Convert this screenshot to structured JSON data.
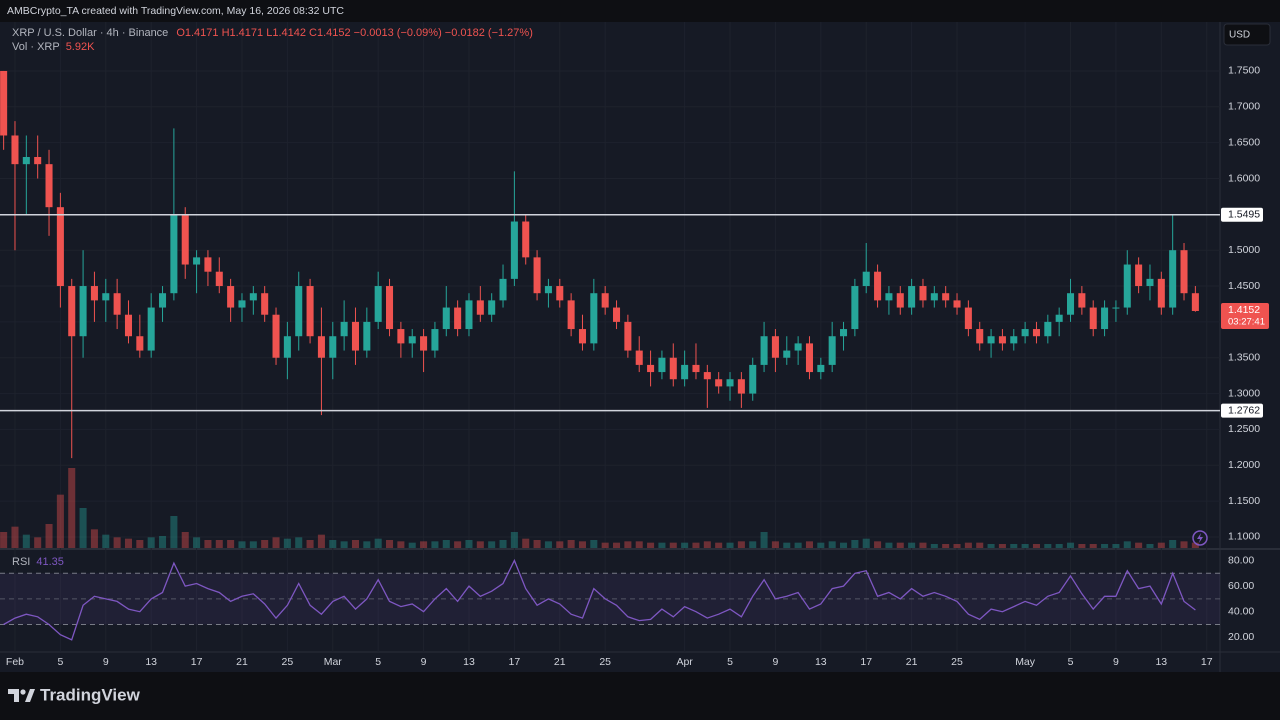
{
  "header": {
    "credit": "AMBCrypto_TA created with TradingView.com, May 16, 2026 08:32 UTC",
    "currency": "USD"
  },
  "brand": "TradingView",
  "chart_data": [
    {
      "type": "candlestick",
      "title": "XRP / U.S. Dollar · 4h · Binance",
      "ohlc": "O1.4171 H1.4171 L1.4142 C1.4152 −0.0013 (−0.09%) −0.0182 (−1.27%)",
      "up_color": "#26a69a",
      "down_color": "#ef5350",
      "grid": true,
      "xlim": [
        -1.32,
        106.17
      ],
      "xticks": [
        {
          "value": 0,
          "label": "Feb"
        },
        {
          "value": 4,
          "label": "5"
        },
        {
          "value": 8,
          "label": "9"
        },
        {
          "value": 12,
          "label": "13"
        },
        {
          "value": 16,
          "label": "17"
        },
        {
          "value": 20,
          "label": "21"
        },
        {
          "value": 24,
          "label": "25"
        },
        {
          "value": 28,
          "label": "Mar"
        },
        {
          "value": 32,
          "label": "5"
        },
        {
          "value": 36,
          "label": "9"
        },
        {
          "value": 40,
          "label": "13"
        },
        {
          "value": 44,
          "label": "17"
        },
        {
          "value": 48,
          "label": "21"
        },
        {
          "value": 52,
          "label": "25"
        },
        {
          "value": 59,
          "label": "Apr"
        },
        {
          "value": 63,
          "label": "5"
        },
        {
          "value": 67,
          "label": "9"
        },
        {
          "value": 71,
          "label": "13"
        },
        {
          "value": 75,
          "label": "17"
        },
        {
          "value": 79,
          "label": "21"
        },
        {
          "value": 83,
          "label": "25"
        },
        {
          "value": 89,
          "label": "May"
        },
        {
          "value": 93,
          "label": "5"
        },
        {
          "value": 97,
          "label": "9"
        },
        {
          "value": 101,
          "label": "13"
        },
        {
          "value": 105,
          "label": "17"
        }
      ],
      "ylim": [
        1.0846,
        1.8183
      ],
      "yticks": [
        {
          "value": 1.1,
          "label": "1.1000"
        },
        {
          "value": 1.15,
          "label": "1.1500"
        },
        {
          "value": 1.2,
          "label": "1.2000"
        },
        {
          "value": 1.25,
          "label": "1.2500"
        },
        {
          "value": 1.3,
          "label": "1.3000"
        },
        {
          "value": 1.35,
          "label": "1.3500"
        },
        {
          "value": 1.4,
          "label": "1.4000"
        },
        {
          "value": 1.45,
          "label": "1.4500"
        },
        {
          "value": 1.5,
          "label": "1.5000"
        },
        {
          "value": 1.55,
          "label": "1.5500"
        },
        {
          "value": 1.6,
          "label": "1.6000"
        },
        {
          "value": 1.65,
          "label": "1.6500"
        },
        {
          "value": 1.7,
          "label": "1.7000"
        },
        {
          "value": 1.75,
          "label": "1.7500"
        }
      ],
      "levels": [
        1.5495,
        1.2762
      ],
      "last_price": 1.4152,
      "countdown": "03:27:41",
      "x": [
        -1,
        0,
        1,
        2,
        3,
        4,
        5,
        6,
        7,
        8,
        9,
        10,
        11,
        12,
        13,
        14,
        15,
        16,
        17,
        18,
        19,
        20,
        21,
        22,
        23,
        24,
        25,
        26,
        27,
        28,
        29,
        30,
        31,
        32,
        33,
        34,
        35,
        36,
        37,
        38,
        39,
        40,
        41,
        42,
        43,
        44,
        45,
        46,
        47,
        48,
        49,
        50,
        51,
        52,
        53,
        54,
        55,
        56,
        57,
        58,
        59,
        60,
        61,
        62,
        63,
        64,
        65,
        66,
        67,
        68,
        69,
        70,
        71,
        72,
        73,
        74,
        75,
        76,
        77,
        78,
        79,
        80,
        81,
        82,
        83,
        84,
        85,
        86,
        87,
        88,
        89,
        90,
        91,
        92,
        93,
        94,
        95,
        96,
        97,
        98,
        99,
        100,
        101,
        102,
        103,
        104
      ],
      "open": [
        1.75,
        1.66,
        1.62,
        1.63,
        1.62,
        1.56,
        1.45,
        1.38,
        1.45,
        1.43,
        1.44,
        1.41,
        1.38,
        1.36,
        1.42,
        1.44,
        1.55,
        1.48,
        1.49,
        1.47,
        1.45,
        1.42,
        1.43,
        1.44,
        1.41,
        1.35,
        1.38,
        1.45,
        1.38,
        1.35,
        1.38,
        1.4,
        1.36,
        1.4,
        1.45,
        1.39,
        1.37,
        1.38,
        1.36,
        1.39,
        1.42,
        1.39,
        1.43,
        1.41,
        1.43,
        1.46,
        1.54,
        1.49,
        1.44,
        1.45,
        1.43,
        1.39,
        1.37,
        1.44,
        1.42,
        1.4,
        1.36,
        1.34,
        1.33,
        1.35,
        1.32,
        1.34,
        1.33,
        1.32,
        1.31,
        1.32,
        1.3,
        1.34,
        1.38,
        1.35,
        1.36,
        1.37,
        1.33,
        1.34,
        1.38,
        1.39,
        1.45,
        1.47,
        1.43,
        1.44,
        1.42,
        1.45,
        1.43,
        1.44,
        1.43,
        1.42,
        1.39,
        1.37,
        1.38,
        1.37,
        1.38,
        1.39,
        1.38,
        1.4,
        1.41,
        1.44,
        1.42,
        1.39,
        1.42,
        1.42,
        1.48,
        1.45,
        1.46,
        1.42,
        1.5,
        1.44
      ],
      "high": [
        1.75,
        1.68,
        1.66,
        1.66,
        1.64,
        1.58,
        1.46,
        1.5,
        1.47,
        1.46,
        1.46,
        1.43,
        1.41,
        1.44,
        1.45,
        1.67,
        1.56,
        1.5,
        1.5,
        1.49,
        1.46,
        1.44,
        1.45,
        1.45,
        1.42,
        1.4,
        1.47,
        1.46,
        1.42,
        1.4,
        1.43,
        1.42,
        1.42,
        1.47,
        1.46,
        1.4,
        1.39,
        1.39,
        1.4,
        1.45,
        1.43,
        1.44,
        1.45,
        1.44,
        1.48,
        1.61,
        1.55,
        1.5,
        1.46,
        1.46,
        1.44,
        1.41,
        1.46,
        1.45,
        1.43,
        1.41,
        1.38,
        1.36,
        1.36,
        1.37,
        1.36,
        1.37,
        1.34,
        1.33,
        1.33,
        1.33,
        1.35,
        1.4,
        1.39,
        1.38,
        1.38,
        1.38,
        1.35,
        1.4,
        1.4,
        1.46,
        1.51,
        1.48,
        1.45,
        1.45,
        1.46,
        1.46,
        1.45,
        1.45,
        1.44,
        1.43,
        1.4,
        1.39,
        1.39,
        1.39,
        1.4,
        1.4,
        1.41,
        1.42,
        1.46,
        1.45,
        1.43,
        1.43,
        1.43,
        1.5,
        1.49,
        1.48,
        1.47,
        1.55,
        1.51,
        1.45
      ],
      "low": [
        1.64,
        1.5,
        1.55,
        1.6,
        1.52,
        1.42,
        1.21,
        1.35,
        1.4,
        1.4,
        1.39,
        1.37,
        1.35,
        1.35,
        1.4,
        1.43,
        1.46,
        1.44,
        1.45,
        1.44,
        1.4,
        1.4,
        1.41,
        1.4,
        1.34,
        1.32,
        1.36,
        1.37,
        1.27,
        1.32,
        1.36,
        1.34,
        1.35,
        1.39,
        1.38,
        1.35,
        1.35,
        1.33,
        1.35,
        1.38,
        1.38,
        1.38,
        1.4,
        1.4,
        1.42,
        1.45,
        1.48,
        1.43,
        1.42,
        1.42,
        1.38,
        1.36,
        1.36,
        1.41,
        1.39,
        1.35,
        1.33,
        1.31,
        1.32,
        1.31,
        1.31,
        1.32,
        1.28,
        1.3,
        1.29,
        1.28,
        1.29,
        1.33,
        1.33,
        1.34,
        1.34,
        1.32,
        1.32,
        1.33,
        1.36,
        1.38,
        1.44,
        1.42,
        1.41,
        1.41,
        1.41,
        1.42,
        1.42,
        1.42,
        1.41,
        1.38,
        1.36,
        1.35,
        1.36,
        1.36,
        1.37,
        1.37,
        1.37,
        1.38,
        1.4,
        1.41,
        1.38,
        1.38,
        1.4,
        1.41,
        1.44,
        1.43,
        1.41,
        1.41,
        1.43,
        1.4142
      ],
      "close": [
        1.66,
        1.62,
        1.63,
        1.62,
        1.56,
        1.45,
        1.38,
        1.45,
        1.43,
        1.44,
        1.41,
        1.38,
        1.36,
        1.42,
        1.44,
        1.55,
        1.48,
        1.49,
        1.47,
        1.45,
        1.42,
        1.43,
        1.44,
        1.41,
        1.35,
        1.38,
        1.45,
        1.38,
        1.35,
        1.38,
        1.4,
        1.36,
        1.4,
        1.45,
        1.39,
        1.37,
        1.38,
        1.36,
        1.39,
        1.42,
        1.39,
        1.43,
        1.41,
        1.43,
        1.46,
        1.54,
        1.49,
        1.44,
        1.45,
        1.43,
        1.39,
        1.37,
        1.44,
        1.42,
        1.4,
        1.36,
        1.34,
        1.33,
        1.35,
        1.32,
        1.34,
        1.33,
        1.32,
        1.31,
        1.32,
        1.3,
        1.34,
        1.38,
        1.35,
        1.36,
        1.37,
        1.33,
        1.34,
        1.38,
        1.39,
        1.45,
        1.47,
        1.43,
        1.44,
        1.42,
        1.45,
        1.43,
        1.44,
        1.43,
        1.42,
        1.39,
        1.37,
        1.38,
        1.37,
        1.38,
        1.39,
        1.38,
        1.4,
        1.41,
        1.44,
        1.42,
        1.39,
        1.42,
        1.42,
        1.48,
        1.45,
        1.46,
        1.42,
        1.5,
        1.44,
        1.4152
      ],
      "volume": {
        "name": "Vol · XRP",
        "last_label": "5.92K",
        "values": [
          60,
          80,
          50,
          40,
          90,
          200,
          300,
          150,
          70,
          50,
          40,
          35,
          30,
          40,
          45,
          120,
          60,
          40,
          30,
          30,
          30,
          25,
          25,
          30,
          40,
          35,
          40,
          30,
          50,
          30,
          25,
          30,
          25,
          35,
          30,
          25,
          20,
          25,
          25,
          30,
          25,
          30,
          25,
          25,
          30,
          60,
          35,
          30,
          25,
          25,
          30,
          25,
          30,
          20,
          20,
          25,
          25,
          20,
          20,
          20,
          20,
          20,
          25,
          20,
          20,
          25,
          25,
          60,
          25,
          20,
          20,
          25,
          20,
          25,
          20,
          30,
          35,
          25,
          20,
          20,
          20,
          20,
          15,
          15,
          15,
          20,
          20,
          15,
          15,
          15,
          15,
          15,
          15,
          15,
          20,
          15,
          15,
          15,
          15,
          25,
          20,
          15,
          20,
          30,
          25,
          20
        ]
      }
    },
    {
      "type": "line",
      "name": "RSI",
      "last_value": 41.35,
      "color": "#7e57c2",
      "bands": [
        30,
        70
      ],
      "midline": 50,
      "ylim": [
        8.5,
        88.2
      ],
      "yticks": [
        {
          "value": 80,
          "label": "80.00"
        },
        {
          "value": 60,
          "label": "60.00"
        },
        {
          "value": 40,
          "label": "40.00"
        },
        {
          "value": 20,
          "label": "20.00"
        }
      ],
      "values": [
        30,
        35,
        38,
        36,
        30,
        22,
        18,
        45,
        52,
        50,
        48,
        42,
        40,
        50,
        55,
        78,
        60,
        62,
        58,
        55,
        48,
        52,
        54,
        46,
        35,
        45,
        62,
        45,
        38,
        48,
        52,
        42,
        50,
        65,
        48,
        44,
        46,
        40,
        50,
        58,
        48,
        60,
        52,
        56,
        62,
        80,
        58,
        45,
        50,
        46,
        38,
        35,
        58,
        50,
        45,
        36,
        33,
        34,
        42,
        36,
        44,
        40,
        35,
        38,
        42,
        36,
        52,
        65,
        50,
        52,
        55,
        42,
        46,
        58,
        60,
        70,
        72,
        52,
        55,
        50,
        58,
        52,
        55,
        52,
        48,
        38,
        34,
        42,
        40,
        44,
        48,
        45,
        52,
        55,
        68,
        54,
        42,
        52,
        52,
        72,
        58,
        60,
        46,
        70,
        48,
        41.35
      ]
    }
  ]
}
